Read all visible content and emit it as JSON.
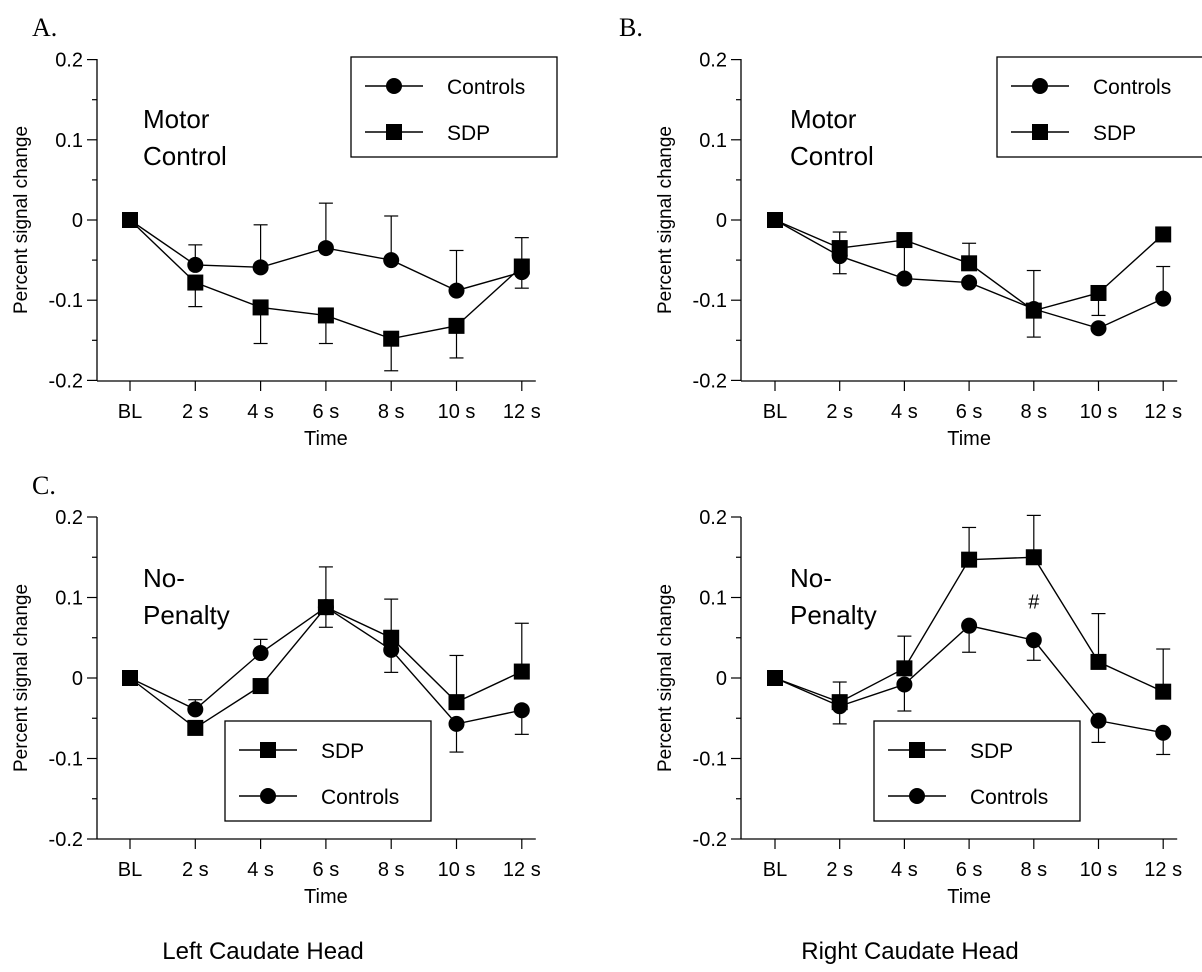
{
  "panels": [
    {
      "letter": "A.",
      "annotation": [
        "Motor",
        "Control"
      ]
    },
    {
      "letter": "B.",
      "annotation": [
        "Motor",
        "Control"
      ]
    },
    {
      "letter": "C.",
      "annotation": [
        "No-",
        "Penalty"
      ]
    },
    {
      "letter": "",
      "annotation": [
        "No-",
        "Penalty"
      ]
    }
  ],
  "column_titles": [
    "Left Caudate Head",
    "Right Caudate Head"
  ],
  "significance_marker": "#",
  "colors": {
    "ink": "#000000",
    "background": "#ffffff"
  },
  "chart_data": [
    {
      "type": "line",
      "title": "",
      "xlabel": "Time",
      "ylabel": "Percent signal change",
      "categories": [
        "BL",
        "2 s",
        "4 s",
        "6 s",
        "8 s",
        "10 s",
        "12 s"
      ],
      "ylim": [
        -0.2,
        0.2
      ],
      "yticks": [
        "0.2",
        "0.1",
        "0",
        "-0.1",
        "-0.2"
      ],
      "legend_position": "top-right",
      "series": [
        {
          "name": "Controls",
          "marker": "circle",
          "values": [
            0,
            -0.056,
            -0.059,
            -0.035,
            -0.05,
            -0.088,
            -0.065
          ],
          "err_up": [
            0,
            0.025,
            0.053,
            0.056,
            0.055,
            0.05,
            0.043
          ],
          "err_down": [
            0,
            0,
            0,
            0,
            0,
            0,
            0
          ]
        },
        {
          "name": "SDP",
          "marker": "square",
          "values": [
            0,
            -0.078,
            -0.109,
            -0.119,
            -0.148,
            -0.132,
            -0.058
          ],
          "err_up": [
            0,
            0,
            0,
            0,
            0,
            0,
            0
          ],
          "err_down": [
            0,
            0.03,
            0.045,
            0.035,
            0.04,
            0.04,
            0.027
          ]
        }
      ]
    },
    {
      "type": "line",
      "title": "",
      "xlabel": "Time",
      "ylabel": "Percent signal change",
      "categories": [
        "BL",
        "2 s",
        "4 s",
        "6 s",
        "8 s",
        "10 s",
        "12 s"
      ],
      "ylim": [
        -0.2,
        0.2
      ],
      "yticks": [
        "0.2",
        "0.1",
        "0",
        "-0.1",
        "-0.2"
      ],
      "legend_position": "top-right",
      "series": [
        {
          "name": "Controls",
          "marker": "circle",
          "values": [
            0,
            -0.045,
            -0.073,
            -0.078,
            -0.111,
            -0.135,
            -0.098
          ],
          "err_up": [
            0,
            0,
            0,
            0,
            0.048,
            0,
            0.04
          ],
          "err_down": [
            0,
            0.022,
            0,
            0,
            0,
            0,
            0
          ]
        },
        {
          "name": "SDP",
          "marker": "square",
          "values": [
            0,
            -0.035,
            -0.025,
            -0.054,
            -0.113,
            -0.091,
            -0.018
          ],
          "err_up": [
            0,
            0.02,
            0,
            0.025,
            0,
            0,
            0
          ],
          "err_down": [
            0,
            0,
            0.043,
            0,
            0.033,
            0.028,
            0
          ]
        }
      ]
    },
    {
      "type": "line",
      "title": "",
      "xlabel": "Time",
      "ylabel": "Percent signal change",
      "categories": [
        "BL",
        "2 s",
        "4 s",
        "6 s",
        "8 s",
        "10 s",
        "12 s"
      ],
      "ylim": [
        -0.2,
        0.2
      ],
      "yticks": [
        "0.2",
        "0.1",
        "0",
        "-0.1",
        "-0.2"
      ],
      "legend_position": "bottom-center",
      "series": [
        {
          "name": "SDP",
          "marker": "square",
          "values": [
            0,
            -0.062,
            -0.01,
            0.088,
            0.05,
            -0.03,
            0.008
          ],
          "err_up": [
            0,
            0,
            0,
            0.05,
            0.048,
            0.058,
            0.06
          ],
          "err_down": [
            0,
            0,
            0,
            0,
            0,
            0,
            0
          ]
        },
        {
          "name": "Controls",
          "marker": "circle",
          "values": [
            0,
            -0.039,
            0.031,
            0.088,
            0.035,
            -0.057,
            -0.04
          ],
          "err_up": [
            0,
            0.012,
            0.017,
            0,
            0,
            0,
            0
          ],
          "err_down": [
            0,
            0,
            0,
            0.025,
            0.028,
            0.035,
            0.03
          ]
        }
      ]
    },
    {
      "type": "line",
      "title": "",
      "xlabel": "Time",
      "ylabel": "Percent signal change",
      "categories": [
        "BL",
        "2 s",
        "4 s",
        "6 s",
        "8 s",
        "10 s",
        "12 s"
      ],
      "ylim": [
        -0.2,
        0.2
      ],
      "yticks": [
        "0.2",
        "0.1",
        "0",
        "-0.1",
        "-0.2"
      ],
      "legend_position": "bottom-center",
      "series": [
        {
          "name": "SDP",
          "marker": "square",
          "values": [
            0,
            -0.03,
            0.012,
            0.147,
            0.15,
            0.02,
            -0.017
          ],
          "err_up": [
            0,
            0.025,
            0.04,
            0.04,
            0.052,
            0.06,
            0.053
          ],
          "err_down": [
            0,
            0,
            0,
            0,
            0,
            0,
            0
          ]
        },
        {
          "name": "Controls",
          "marker": "circle",
          "values": [
            0,
            -0.035,
            -0.008,
            0.065,
            0.047,
            -0.053,
            -0.068
          ],
          "err_up": [
            0,
            0,
            0,
            0,
            0,
            0,
            0
          ],
          "err_down": [
            0,
            0.022,
            0.033,
            0.033,
            0.025,
            0.027,
            0.027
          ]
        }
      ]
    }
  ]
}
